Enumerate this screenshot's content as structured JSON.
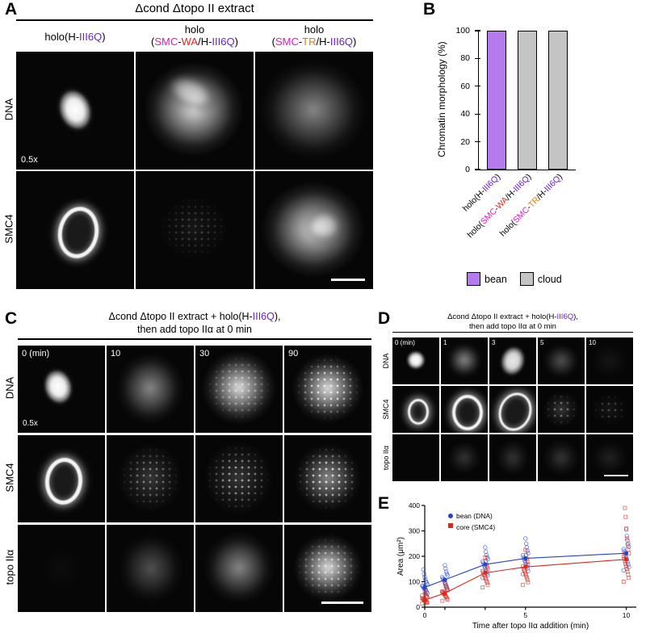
{
  "panel_a": {
    "label": "A",
    "title": "Δcond Δtopo II extract",
    "columns": [
      {
        "line1": [
          {
            "t": "holo(H-",
            "c": "#000000"
          },
          {
            "t": "III6Q",
            "c": "#6a1fd0"
          },
          {
            "t": ")",
            "c": "#000000"
          }
        ],
        "line2": []
      },
      {
        "line1": [
          {
            "t": "holo",
            "c": "#000000"
          }
        ],
        "line2": [
          {
            "t": "(",
            "c": "#000000"
          },
          {
            "t": "SMC",
            "c": "#e614c8"
          },
          {
            "t": "-",
            "c": "#000000"
          },
          {
            "t": "WA",
            "c": "#e8251f"
          },
          {
            "t": "/H-",
            "c": "#000000"
          },
          {
            "t": "III6Q",
            "c": "#6a1fd0"
          },
          {
            "t": ")",
            "c": "#000000"
          }
        ]
      },
      {
        "line1": [
          {
            "t": "holo",
            "c": "#000000"
          }
        ],
        "line2": [
          {
            "t": "(",
            "c": "#000000"
          },
          {
            "t": "SMC",
            "c": "#e614c8"
          },
          {
            "t": "-",
            "c": "#000000"
          },
          {
            "t": "TR",
            "c": "#e07b10"
          },
          {
            "t": "/H-",
            "c": "#000000"
          },
          {
            "t": "III6Q",
            "c": "#6a1fd0"
          },
          {
            "t": ")",
            "c": "#000000"
          }
        ]
      }
    ],
    "row_labels": [
      "DNA",
      "SMC4"
    ],
    "scale_note": "0.5x"
  },
  "panel_b": {
    "label": "B"
  },
  "panel_c": {
    "label": "C",
    "title_line1": [
      {
        "t": "Δcond Δtopo II extract + holo(H-",
        "c": "#000000"
      },
      {
        "t": "III6Q",
        "c": "#6a1fd0"
      },
      {
        "t": "),",
        "c": "#000000"
      }
    ],
    "title_line2": "then add topo IIα at 0 min",
    "row_labels": [
      "DNA",
      "SMC4",
      "topo IIα"
    ],
    "time_labels": [
      "0 (min)",
      "10",
      "30",
      "90"
    ],
    "scale_note": "0.5x"
  },
  "panel_d": {
    "label": "D",
    "title_line1": [
      {
        "t": "Δcond Δtopo II extract + holo(H-",
        "c": "#000000"
      },
      {
        "t": "III6Q",
        "c": "#6a1fd0"
      },
      {
        "t": "),",
        "c": "#000000"
      }
    ],
    "title_line2": "then add topo IIα at 0 min",
    "row_labels": [
      "DNA",
      "SMC4",
      "topo IIα"
    ],
    "time_labels": [
      "0 (min)",
      "1",
      "3",
      "5",
      "10"
    ]
  },
  "panel_e": {
    "label": "E"
  },
  "chart_data": [
    {
      "type": "bar",
      "title": "Chromatin morphology",
      "ylabel": "Chromatin morphology (%)",
      "ylim": [
        0,
        100
      ],
      "yticks": [
        0,
        20,
        40,
        60,
        80,
        100
      ],
      "categories": [
        "holo(H-III6Q)",
        "holo(SMC-WA/H-III6Q)",
        "holo(SMC-TR/H-III6Q)"
      ],
      "values": [
        100,
        100,
        100
      ],
      "bar_colors": [
        "#b57bee",
        "#c4c4c4",
        "#c4c4c4"
      ],
      "category_segments": [
        [
          {
            "t": "holo(H-",
            "c": "#000000"
          },
          {
            "t": "III6Q",
            "c": "#6a1fd0"
          },
          {
            "t": ")",
            "c": "#000000"
          }
        ],
        [
          {
            "t": "holo(",
            "c": "#000000"
          },
          {
            "t": "SMC",
            "c": "#e614c8"
          },
          {
            "t": "-",
            "c": "#000000"
          },
          {
            "t": "WA",
            "c": "#e8251f"
          },
          {
            "t": "/H-",
            "c": "#000000"
          },
          {
            "t": "III6Q",
            "c": "#6a1fd0"
          },
          {
            "t": ")",
            "c": "#000000"
          }
        ],
        [
          {
            "t": "holo(",
            "c": "#000000"
          },
          {
            "t": "SMC",
            "c": "#e614c8"
          },
          {
            "t": "-",
            "c": "#000000"
          },
          {
            "t": "TR",
            "c": "#e07b10"
          },
          {
            "t": "/H-",
            "c": "#000000"
          },
          {
            "t": "III6Q",
            "c": "#6a1fd0"
          },
          {
            "t": ")",
            "c": "#000000"
          }
        ]
      ],
      "legend": [
        {
          "label": "bean",
          "color": "#b57bee"
        },
        {
          "label": "cloud",
          "color": "#c4c4c4"
        }
      ]
    },
    {
      "type": "scatter",
      "xlabel": "Time after topo IIα addition (min)",
      "ylabel": "Area (μm²)",
      "ylim": [
        0,
        400
      ],
      "yticks": [
        0,
        100,
        200,
        300,
        400
      ],
      "xticks_labeled": [
        0,
        5,
        10
      ],
      "x_values": [
        0,
        1,
        3,
        5,
        10
      ],
      "series": [
        {
          "name": "bean (DNA)",
          "color": "#2743c7",
          "marker": "circle",
          "means": [
            78,
            108,
            168,
            192,
            212
          ],
          "scatter": [
            [
              45,
              55,
              60,
              65,
              70,
              72,
              75,
              78,
              82,
              85,
              90,
              95,
              100,
              108,
              118,
              130,
              148
            ],
            [
              60,
              70,
              78,
              85,
              92,
              98,
              104,
              108,
              112,
              118,
              125,
              132,
              140,
              152,
              165
            ],
            [
              115,
              125,
              132,
              140,
              148,
              155,
              162,
              168,
              174,
              180,
              188,
              196,
              205,
              218,
              235
            ],
            [
              130,
              142,
              152,
              160,
              168,
              175,
              182,
              190,
              196,
              204,
              212,
              222,
              235,
              250,
              270
            ],
            [
              145,
              158,
              168,
              178,
              188,
              196,
              205,
              212,
              220,
              228,
              238,
              250,
              262,
              280,
              305
            ]
          ]
        },
        {
          "name": "core (SMC4)",
          "color": "#d92a1c",
          "marker": "square",
          "means": [
            28,
            55,
            135,
            158,
            188
          ],
          "scatter": [
            [
              14,
              17,
              20,
              22,
              25,
              27,
              29,
              31,
              33,
              36,
              39,
              42,
              46,
              52,
              60
            ],
            [
              25,
              30,
              35,
              40,
              44,
              48,
              52,
              55,
              58,
              62,
              66,
              71,
              77,
              85,
              95
            ],
            [
              78,
              88,
              96,
              104,
              112,
              118,
              125,
              130,
              136,
              142,
              150,
              158,
              168,
              180,
              195
            ],
            [
              88,
              98,
              108,
              116,
              124,
              132,
              140,
              146,
              152,
              160,
              168,
              178,
              190,
              205,
              225
            ],
            [
              100,
              115,
              128,
              140,
              150,
              160,
              170,
              180,
              190,
              200,
              212,
              226,
              244,
              270,
              310,
              355,
              390
            ]
          ]
        }
      ]
    }
  ]
}
